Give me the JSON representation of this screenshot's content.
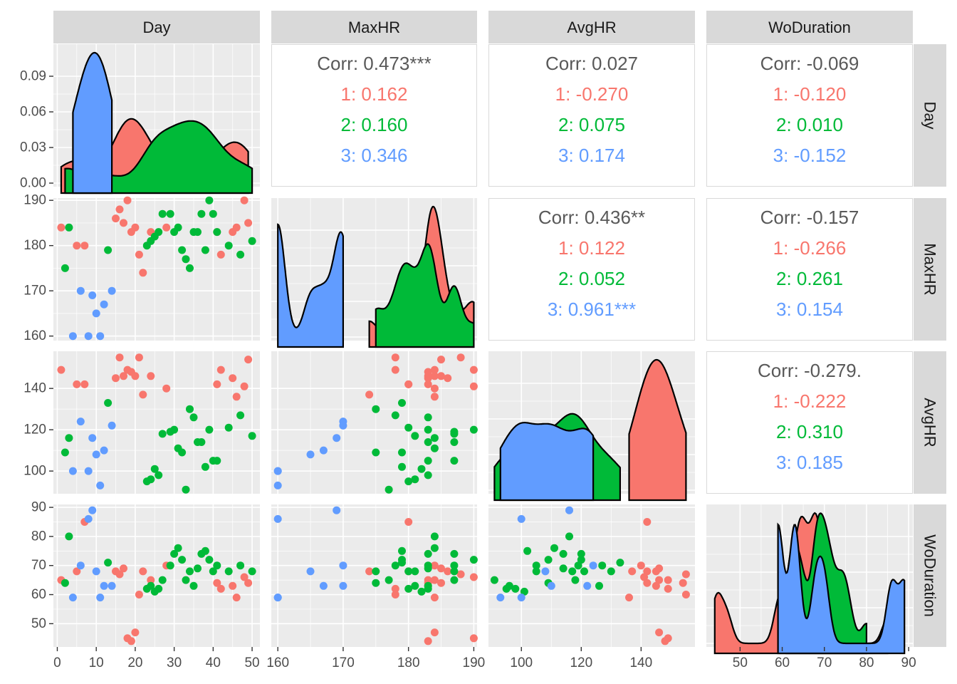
{
  "chart_data": {
    "type": "scatter-matrix",
    "variables": [
      "Day",
      "MaxHR",
      "AvgHR",
      "WoDuration"
    ],
    "group_colors": {
      "1": "#F8766D",
      "2": "#00BA38",
      "3": "#619CFF"
    },
    "axes": {
      "Day": {
        "range": [
          -1,
          52
        ],
        "ticks": [
          0,
          10,
          20,
          30,
          40,
          50
        ],
        "labels": [
          "0",
          "10",
          "20",
          "30",
          "40",
          "50"
        ]
      },
      "MaxHR": {
        "range": [
          159,
          190.5
        ],
        "ticks": [
          160,
          170,
          180,
          190
        ],
        "labels": [
          "160",
          "170",
          "180",
          "190"
        ]
      },
      "AvgHR": {
        "range": [
          89,
          158
        ],
        "ticks": [
          100,
          120,
          140
        ],
        "labels": [
          "100",
          "120",
          "140"
        ]
      },
      "WoDuration": {
        "range": [
          42,
          91
        ],
        "ticks": [
          50,
          60,
          70,
          80,
          90
        ],
        "labels": [
          "50",
          "60",
          "70",
          "80",
          "90"
        ]
      }
    },
    "density_axis": {
      "range": [
        -0.003,
        0.117
      ],
      "ticks": [
        0,
        0.03,
        0.06,
        0.09
      ],
      "labels": [
        "0.00",
        "0.03",
        "0.06",
        "0.09"
      ]
    },
    "correlations": [
      {
        "cell": "Day-MaxHR",
        "lines": [
          "Corr: 0.473***",
          "1: 0.162",
          "2: 0.160",
          "3: 0.346"
        ]
      },
      {
        "cell": "Day-AvgHR",
        "lines": [
          "Corr: 0.027",
          "1: -0.270",
          "2: 0.075",
          "3: 0.174"
        ]
      },
      {
        "cell": "Day-WoDuration",
        "lines": [
          "Corr: -0.069",
          "1: -0.120",
          "2: 0.010",
          "3: -0.152"
        ]
      },
      {
        "cell": "MaxHR-AvgHR",
        "lines": [
          "Corr: 0.436**",
          "1: 0.122",
          "2: 0.052",
          "3: 0.961***"
        ]
      },
      {
        "cell": "MaxHR-WoDuration",
        "lines": [
          "Corr: -0.157",
          "1: -0.266",
          "2: 0.261",
          "3: 0.154"
        ]
      },
      {
        "cell": "AvgHR-WoDuration",
        "lines": [
          "Corr: -0.279.",
          "1: -0.222",
          "2: 0.310",
          "3: 0.185"
        ]
      }
    ],
    "observations": [
      {
        "day": 1,
        "maxhr": 184,
        "avghr": 149,
        "wo": 65,
        "g": 1
      },
      {
        "day": 5,
        "maxhr": 180,
        "avghr": 142,
        "wo": 68,
        "g": 1
      },
      {
        "day": 7,
        "maxhr": 180,
        "avghr": 142,
        "wo": 85,
        "g": 1
      },
      {
        "day": 15,
        "maxhr": 186,
        "avghr": 145,
        "wo": 68,
        "g": 1
      },
      {
        "day": 16,
        "maxhr": 188,
        "avghr": 155,
        "wo": 67,
        "g": 1
      },
      {
        "day": 17,
        "maxhr": 185,
        "avghr": 146,
        "wo": 69,
        "g": 1
      },
      {
        "day": 18,
        "maxhr": 190,
        "avghr": 149,
        "wo": 45,
        "g": 1
      },
      {
        "day": 19,
        "maxhr": 183,
        "avghr": 148,
        "wo": 44,
        "g": 1
      },
      {
        "day": 20,
        "maxhr": 184,
        "avghr": 146,
        "wo": 47,
        "g": 1
      },
      {
        "day": 21,
        "maxhr": 178,
        "avghr": 155,
        "wo": 60,
        "g": 1
      },
      {
        "day": 22,
        "maxhr": 174,
        "avghr": 137,
        "wo": 68,
        "g": 1
      },
      {
        "day": 24,
        "maxhr": 183,
        "avghr": 146,
        "wo": 65,
        "g": 1
      },
      {
        "day": 28,
        "maxhr": 184,
        "avghr": 140,
        "wo": 70,
        "g": 1
      },
      {
        "day": 41,
        "maxhr": 183,
        "avghr": 142,
        "wo": 64,
        "g": 1
      },
      {
        "day": 42,
        "maxhr": 178,
        "avghr": 149,
        "wo": 62,
        "g": 1
      },
      {
        "day": 45,
        "maxhr": 183,
        "avghr": 145,
        "wo": 63,
        "g": 1
      },
      {
        "day": 46,
        "maxhr": 184,
        "avghr": 136,
        "wo": 59,
        "g": 1
      },
      {
        "day": 48,
        "maxhr": 190,
        "avghr": 141,
        "wo": 66,
        "g": 1
      },
      {
        "day": 49,
        "maxhr": 185,
        "avghr": 154,
        "wo": 64,
        "g": 1
      },
      {
        "day": 2,
        "maxhr": 175,
        "avghr": 109,
        "wo": 64,
        "g": 2
      },
      {
        "day": 3,
        "maxhr": 184,
        "avghr": 116,
        "wo": 80,
        "g": 2
      },
      {
        "day": 13,
        "maxhr": 179,
        "avghr": 133,
        "wo": 71,
        "g": 2
      },
      {
        "day": 23,
        "maxhr": 180,
        "avghr": 95,
        "wo": 62,
        "g": 2
      },
      {
        "day": 24,
        "maxhr": 181,
        "avghr": 96,
        "wo": 63,
        "g": 2
      },
      {
        "day": 25,
        "maxhr": 182,
        "avghr": 101,
        "wo": 61,
        "g": 2
      },
      {
        "day": 26,
        "maxhr": 183,
        "avghr": 98,
        "wo": 62,
        "g": 2
      },
      {
        "day": 27,
        "maxhr": 187,
        "avghr": 118,
        "wo": 65,
        "g": 2
      },
      {
        "day": 29,
        "maxhr": 187,
        "avghr": 119,
        "wo": 70,
        "g": 2
      },
      {
        "day": 30,
        "maxhr": 183,
        "avghr": 120,
        "wo": 74,
        "g": 2
      },
      {
        "day": 31,
        "maxhr": 184,
        "avghr": 111,
        "wo": 76,
        "g": 2
      },
      {
        "day": 32,
        "maxhr": 179,
        "avghr": 109,
        "wo": 72,
        "g": 2
      },
      {
        "day": 33,
        "maxhr": 177,
        "avghr": 91,
        "wo": 65,
        "g": 2
      },
      {
        "day": 34,
        "maxhr": 175,
        "avghr": 130,
        "wo": 68,
        "g": 2
      },
      {
        "day": 35,
        "maxhr": 183,
        "avghr": 126,
        "wo": 63,
        "g": 2
      },
      {
        "day": 36,
        "maxhr": 183,
        "avghr": 114,
        "wo": 69,
        "g": 2
      },
      {
        "day": 37,
        "maxhr": 187,
        "avghr": 114,
        "wo": 74,
        "g": 2
      },
      {
        "day": 38,
        "maxhr": 179,
        "avghr": 102,
        "wo": 75,
        "g": 2
      },
      {
        "day": 39,
        "maxhr": 190,
        "avghr": 120,
        "wo": 72,
        "g": 2
      },
      {
        "day": 40,
        "maxhr": 187,
        "avghr": 105,
        "wo": 68,
        "g": 2
      },
      {
        "day": 41,
        "maxhr": 183,
        "avghr": 105,
        "wo": 70,
        "g": 2
      },
      {
        "day": 44,
        "maxhr": 180,
        "avghr": 121,
        "wo": 68,
        "g": 2
      },
      {
        "day": 47,
        "maxhr": 178,
        "avghr": 127,
        "wo": 70,
        "g": 2
      },
      {
        "day": 50,
        "maxhr": 181,
        "avghr": 117,
        "wo": 68,
        "g": 2
      },
      {
        "day": 4,
        "maxhr": 160,
        "avghr": 100,
        "wo": 59,
        "g": 3
      },
      {
        "day": 6,
        "maxhr": 170,
        "avghr": 124,
        "wo": 70,
        "g": 3
      },
      {
        "day": 8,
        "maxhr": 160,
        "avghr": 100,
        "wo": 86,
        "g": 3
      },
      {
        "day": 9,
        "maxhr": 169,
        "avghr": 116,
        "wo": 89,
        "g": 3
      },
      {
        "day": 10,
        "maxhr": 165,
        "avghr": 108,
        "wo": 68,
        "g": 3
      },
      {
        "day": 11,
        "maxhr": 160,
        "avghr": 93,
        "wo": 59,
        "g": 3
      },
      {
        "day": 12,
        "maxhr": 167,
        "avghr": 110,
        "wo": 63,
        "g": 3
      },
      {
        "day": 14,
        "maxhr": 170,
        "avghr": 122,
        "wo": 63,
        "g": 3
      }
    ]
  }
}
